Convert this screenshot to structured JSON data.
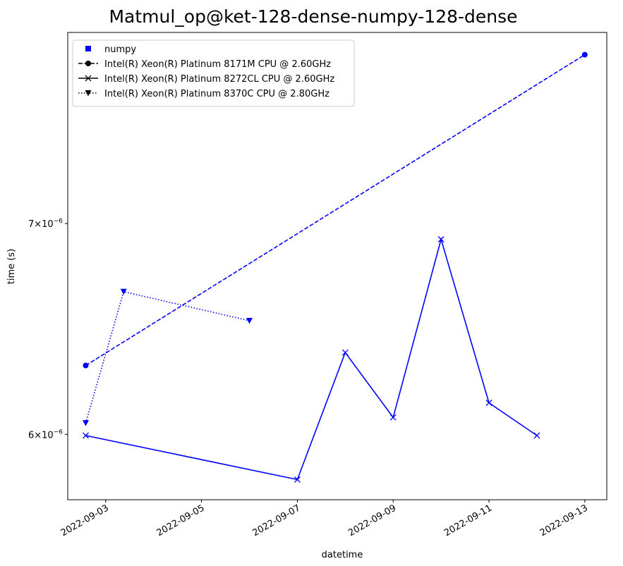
{
  "chart_data": {
    "type": "line",
    "title": "Matmul_op@ket-128-dense-numpy-128-dense",
    "xlabel": "datetime",
    "ylabel": "time (s)",
    "y_scale": "log",
    "xlim": [
      "2022-09-02T05:00",
      "2022-09-13T11:00"
    ],
    "ylim": [
      5.72e-06,
      8.05e-06
    ],
    "x_ticks": [
      "2022-09-03",
      "2022-09-05",
      "2022-09-07",
      "2022-09-09",
      "2022-09-11",
      "2022-09-13"
    ],
    "y_ticks": [
      {
        "value": 7e-06,
        "mantissa": "7",
        "base": "10",
        "exponent": "−6"
      },
      {
        "value": 6e-06,
        "mantissa": "6",
        "base": "10",
        "exponent": "−6"
      }
    ],
    "grid": false,
    "legend_position": "top-left",
    "color": "#0000ff",
    "legend": [
      {
        "label": "numpy",
        "marker": "square",
        "linestyle": "none"
      },
      {
        "label": "Intel(R) Xeon(R) Platinum 8171M CPU @ 2.60GHz",
        "marker": "circle",
        "linestyle": "dashed"
      },
      {
        "label": "Intel(R) Xeon(R) Platinum 8272CL CPU @ 2.60GHz",
        "marker": "x",
        "linestyle": "solid"
      },
      {
        "label": "Intel(R) Xeon(R) Platinum 8370C CPU @ 2.80GHz",
        "marker": "triangle-down",
        "linestyle": "dotted"
      }
    ],
    "series": [
      {
        "name": "Intel(R) Xeon(R) Platinum 8171M CPU @ 2.60GHz",
        "marker": "circle",
        "linestyle": "dashed",
        "points": [
          {
            "x": "2022-09-02T14:00",
            "y": 6.31e-06
          },
          {
            "x": "2022-09-13T00:00",
            "y": 7.92e-06
          }
        ]
      },
      {
        "name": "Intel(R) Xeon(R) Platinum 8272CL CPU @ 2.60GHz",
        "marker": "x",
        "linestyle": "solid",
        "points": [
          {
            "x": "2022-09-02T14:00",
            "y": 5.995e-06
          },
          {
            "x": "2022-09-07T00:00",
            "y": 5.805e-06
          },
          {
            "x": "2022-09-08T00:00",
            "y": 6.37e-06
          },
          {
            "x": "2022-09-09T00:00",
            "y": 6.075e-06
          },
          {
            "x": "2022-09-10T00:00",
            "y": 6.92e-06
          },
          {
            "x": "2022-09-11T00:00",
            "y": 6.14e-06
          },
          {
            "x": "2022-09-12T00:00",
            "y": 5.995e-06
          }
        ]
      },
      {
        "name": "Intel(R) Xeon(R) Platinum 8370C CPU @ 2.80GHz",
        "marker": "triangle-down",
        "linestyle": "dotted",
        "points": [
          {
            "x": "2022-09-02T14:00",
            "y": 6.05e-06
          },
          {
            "x": "2022-09-03T09:00",
            "y": 6.66e-06
          },
          {
            "x": "2022-09-06T00:00",
            "y": 6.52e-06
          }
        ]
      }
    ]
  }
}
